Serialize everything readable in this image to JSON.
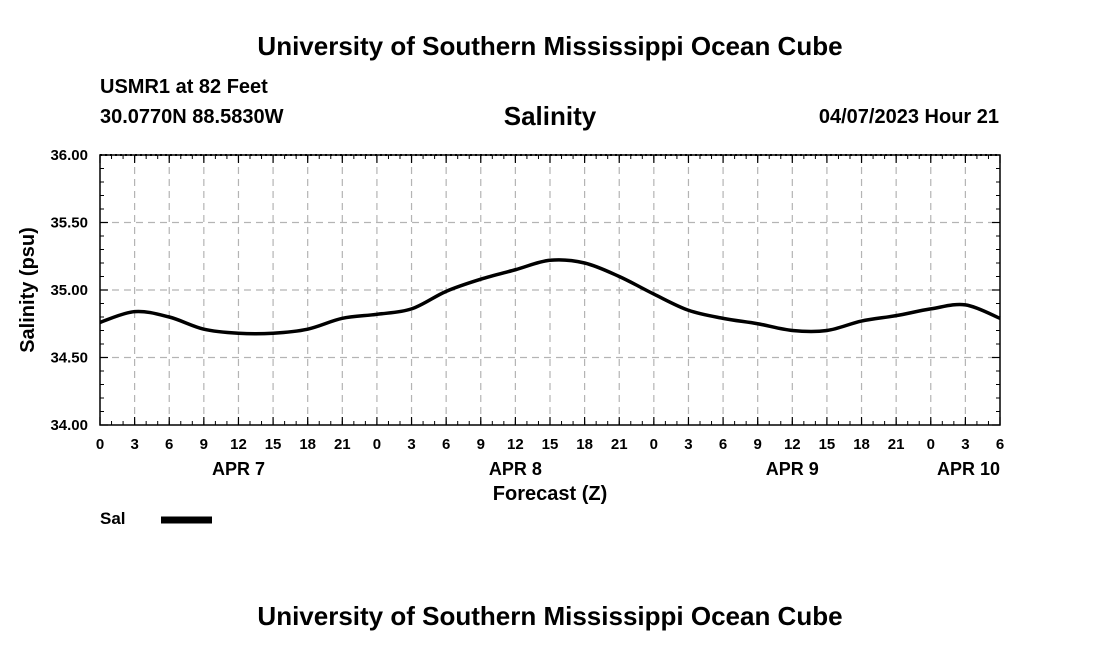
{
  "header": {
    "top_title": "University of Southern Mississippi Ocean Cube",
    "station": "USMR1 at 82 Feet",
    "coords": "30.0770N  88.5830W",
    "date": "04/07/2023 Hour 21",
    "bottom_title": "University of Southern Mississippi Ocean Cube"
  },
  "legend": {
    "label": "Sal",
    "color": "#000000"
  },
  "chart_data": {
    "type": "line",
    "title": "Salinity",
    "xlabel": "Forecast (Z)",
    "ylabel": "Salinity (psu)",
    "ylim": [
      34.0,
      36.0
    ],
    "yticks": [
      "34.00",
      "34.50",
      "35.00",
      "35.50",
      "36.00"
    ],
    "xlim": [
      0,
      78
    ],
    "x_tick_labels": [
      "0",
      "3",
      "6",
      "9",
      "12",
      "15",
      "18",
      "21",
      "0",
      "3",
      "6",
      "9",
      "12",
      "15",
      "18",
      "21",
      "0",
      "3",
      "6",
      "9",
      "12",
      "15",
      "18",
      "21",
      "0",
      "3",
      "6"
    ],
    "day_labels": [
      {
        "label": "APR 7",
        "hour": 12
      },
      {
        "label": "APR 8",
        "hour": 36
      },
      {
        "label": "APR 9",
        "hour": 60
      },
      {
        "label": "APR 10",
        "hour": 78
      }
    ],
    "grid": true,
    "series": [
      {
        "name": "Sal",
        "x": [
          0,
          3,
          6,
          9,
          12,
          15,
          18,
          21,
          24,
          27,
          30,
          33,
          36,
          39,
          42,
          45,
          48,
          51,
          54,
          57,
          60,
          63,
          66,
          69,
          72,
          75,
          78
        ],
        "values": [
          34.76,
          34.84,
          34.8,
          34.71,
          34.68,
          34.68,
          34.71,
          34.79,
          34.82,
          34.86,
          34.99,
          35.08,
          35.15,
          35.22,
          35.2,
          35.1,
          34.97,
          34.85,
          34.79,
          34.75,
          34.7,
          34.7,
          34.77,
          34.81,
          34.86,
          34.89,
          34.79
        ]
      }
    ]
  }
}
